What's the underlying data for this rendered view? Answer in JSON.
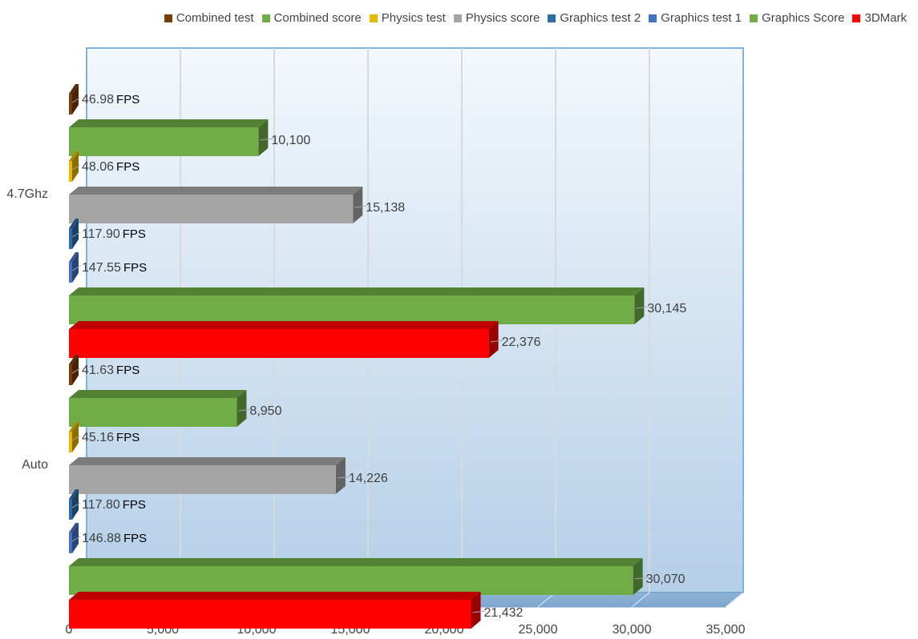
{
  "chart_data": {
    "type": "bar",
    "orientation": "horizontal",
    "style": "3d-clustered",
    "categories": [
      "4.7Ghz",
      "Auto"
    ],
    "xlim": [
      0,
      35000
    ],
    "x_ticks": [
      "0",
      "5,000",
      "10,000",
      "15,000",
      "20,000",
      "25,000",
      "30,000",
      "35,000"
    ],
    "grid": true,
    "legend_position": "top",
    "series": [
      {
        "name": "Combined test",
        "color": "#7a3b0a",
        "values": [
          46.98,
          41.63
        ],
        "labels": [
          "46.98",
          "41.63"
        ],
        "unit": "FPS"
      },
      {
        "name": "Combined score",
        "color": "#70ad47",
        "values": [
          10100,
          8950
        ],
        "labels": [
          "10,100",
          "8,950"
        ]
      },
      {
        "name": "Physics test",
        "color": "#e6b800",
        "values": [
          48.06,
          45.16
        ],
        "labels": [
          "48.06",
          "45.16"
        ],
        "unit": "FPS"
      },
      {
        "name": "Physics score",
        "color": "#a5a5a5",
        "values": [
          15138,
          14226
        ],
        "labels": [
          "15,138",
          "14,226"
        ]
      },
      {
        "name": "Graphics test 2",
        "color": "#2e6ca8",
        "values": [
          117.9,
          117.8
        ],
        "labels": [
          "117.90",
          "117.80"
        ],
        "unit": "FPS"
      },
      {
        "name": "Graphics test 1",
        "color": "#4472c4",
        "values": [
          147.55,
          146.88
        ],
        "labels": [
          "147.55",
          "146.88"
        ],
        "unit": "FPS"
      },
      {
        "name": "Graphics Score",
        "color": "#70ad47",
        "values": [
          30145,
          30070
        ],
        "labels": [
          "30,145",
          "30,070"
        ]
      },
      {
        "name": "3DMark",
        "color": "#ff0000",
        "values": [
          22376,
          21432
        ],
        "labels": [
          "22,376",
          "21,432"
        ]
      }
    ]
  }
}
